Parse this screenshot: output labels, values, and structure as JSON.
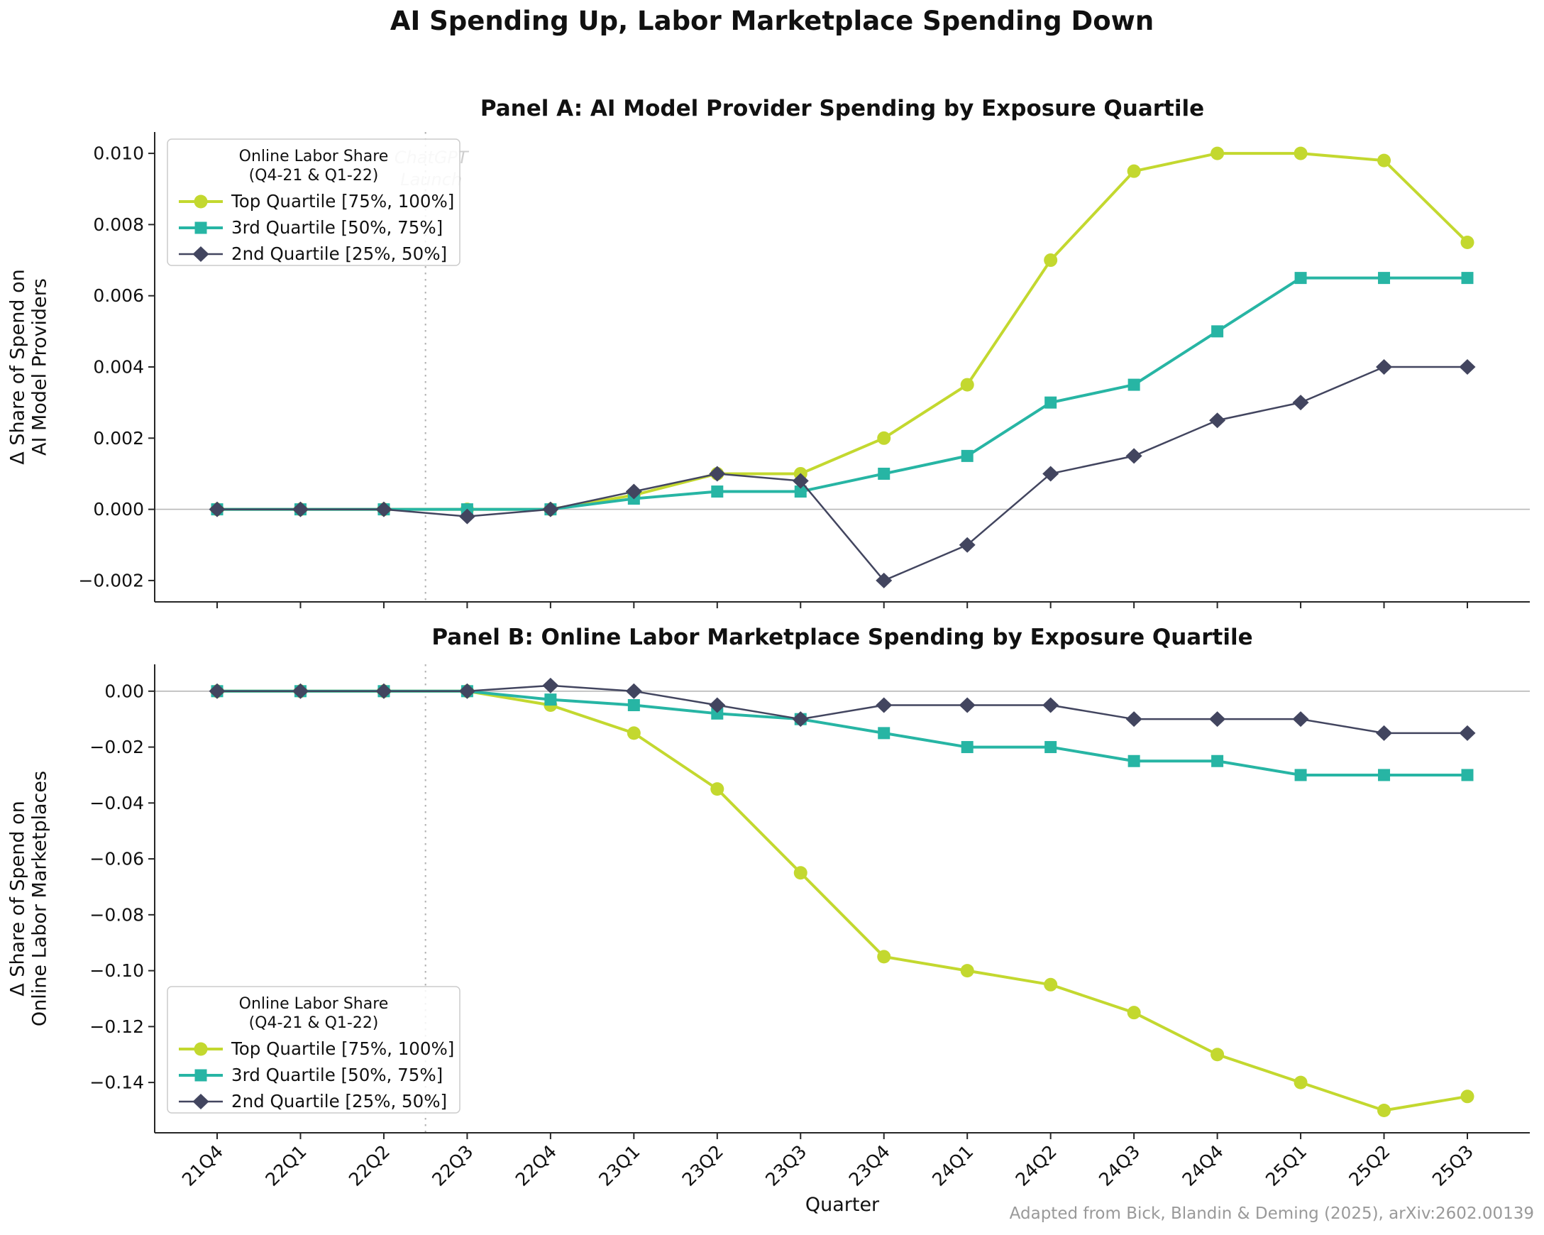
{
  "figure": {
    "title": "AI Spending Up, Labor Marketplace Spending Down",
    "xlabel": "Quarter",
    "attribution": "Adapted from Bick, Blandin & Deming (2025), arXiv:2602.00139"
  },
  "colors": {
    "top": "#c3d82f",
    "third": "#27b5a4",
    "second": "#42455f",
    "axis": "#262626",
    "text": "#111111",
    "zero_line": "#b8b8b8",
    "event_line": "#b0b0b0",
    "annotation": "#cfcfcf",
    "legend_border": "#cccccc",
    "muted": "#999999"
  },
  "legend": {
    "title_lines": [
      "Online Labor Share",
      "(Q4-21 & Q1-22)"
    ]
  },
  "event_label_lines": [
    "ChatGPT",
    "Launch"
  ],
  "chart_data": [
    {
      "type": "line",
      "panel": "A",
      "title": "Panel A: AI Model Provider Spending by Exposure Quartile",
      "ylabel_lines": [
        "Δ Share of Spend on",
        "AI Model Providers"
      ],
      "xlabel": "",
      "categories": [
        "21Q4",
        "22Q1",
        "22Q2",
        "22Q3",
        "22Q4",
        "23Q1",
        "23Q2",
        "23Q3",
        "23Q4",
        "24Q1",
        "24Q2",
        "24Q3",
        "24Q4",
        "25Q1",
        "25Q2",
        "25Q3"
      ],
      "ylim": [
        -0.0026,
        0.0106
      ],
      "event_line_x": 2.5,
      "show_event_label": true,
      "legend_position": "upper-left",
      "grid": false,
      "yticks": [
        {
          "v": 0.01,
          "label": "0.010"
        },
        {
          "v": 0.008,
          "label": "0.008"
        },
        {
          "v": 0.006,
          "label": "0.006"
        },
        {
          "v": 0.004,
          "label": "0.004"
        },
        {
          "v": 0.002,
          "label": "0.002"
        },
        {
          "v": 0.0,
          "label": "0.000"
        },
        {
          "v": -0.002,
          "label": "−0.002"
        }
      ],
      "series": [
        {
          "name": "Top Quartile [75%, 100%]",
          "marker": "circle",
          "color_key": "top",
          "line_width": 4,
          "values": [
            0.0,
            0.0,
            0.0,
            0.0,
            0.0,
            0.0004,
            0.001,
            0.001,
            0.002,
            0.0035,
            0.007,
            0.0095,
            0.01,
            0.01,
            0.0098,
            0.0075
          ]
        },
        {
          "name": "3rd Quartile [50%, 75%]",
          "marker": "square",
          "color_key": "third",
          "line_width": 4,
          "values": [
            0.0,
            0.0,
            0.0,
            0.0,
            0.0,
            0.0003,
            0.0005,
            0.0005,
            0.001,
            0.0015,
            0.003,
            0.0035,
            0.005,
            0.0065,
            0.0065,
            0.0065
          ]
        },
        {
          "name": "2nd Quartile [25%, 50%]",
          "marker": "diamond",
          "color_key": "second",
          "line_width": 2.5,
          "values": [
            0.0,
            0.0,
            0.0,
            -0.0002,
            0.0,
            0.0005,
            0.001,
            0.0008,
            -0.002,
            -0.001,
            0.001,
            0.0015,
            0.0025,
            0.003,
            0.004,
            0.004
          ]
        }
      ]
    },
    {
      "type": "line",
      "panel": "B",
      "title": "Panel B: Online Labor Marketplace Spending by Exposure Quartile",
      "ylabel_lines": [
        "Δ Share of Spend on",
        "Online Labor Marketplaces"
      ],
      "xlabel": "Quarter",
      "categories": [
        "21Q4",
        "22Q1",
        "22Q2",
        "22Q3",
        "22Q4",
        "23Q1",
        "23Q2",
        "23Q3",
        "23Q4",
        "24Q1",
        "24Q2",
        "24Q3",
        "24Q4",
        "25Q1",
        "25Q2",
        "25Q3"
      ],
      "ylim": [
        -0.158,
        0.0096
      ],
      "event_line_x": 2.5,
      "show_event_label": false,
      "legend_position": "lower-left",
      "grid": false,
      "yticks": [
        {
          "v": 0.0,
          "label": "0.00"
        },
        {
          "v": -0.02,
          "label": "−0.02"
        },
        {
          "v": -0.04,
          "label": "−0.04"
        },
        {
          "v": -0.06,
          "label": "−0.06"
        },
        {
          "v": -0.08,
          "label": "−0.08"
        },
        {
          "v": -0.1,
          "label": "−0.10"
        },
        {
          "v": -0.12,
          "label": "−0.12"
        },
        {
          "v": -0.14,
          "label": "−0.14"
        }
      ],
      "series": [
        {
          "name": "Top Quartile [75%, 100%]",
          "marker": "circle",
          "color_key": "top",
          "line_width": 4,
          "values": [
            0.0,
            0.0,
            0.0,
            0.0,
            -0.005,
            -0.015,
            -0.035,
            -0.065,
            -0.095,
            -0.1,
            -0.105,
            -0.115,
            -0.13,
            -0.14,
            -0.15,
            -0.145
          ]
        },
        {
          "name": "3rd Quartile [50%, 75%]",
          "marker": "square",
          "color_key": "third",
          "line_width": 4,
          "values": [
            0.0,
            0.0,
            0.0,
            0.0,
            -0.003,
            -0.005,
            -0.008,
            -0.01,
            -0.015,
            -0.02,
            -0.02,
            -0.025,
            -0.025,
            -0.03,
            -0.03,
            -0.03
          ]
        },
        {
          "name": "2nd Quartile [25%, 50%]",
          "marker": "diamond",
          "color_key": "second",
          "line_width": 2.5,
          "values": [
            0.0,
            0.0,
            0.0,
            0.0,
            0.002,
            0.0,
            -0.005,
            -0.01,
            -0.005,
            -0.005,
            -0.005,
            -0.01,
            -0.01,
            -0.01,
            -0.015,
            -0.015
          ]
        }
      ]
    }
  ]
}
